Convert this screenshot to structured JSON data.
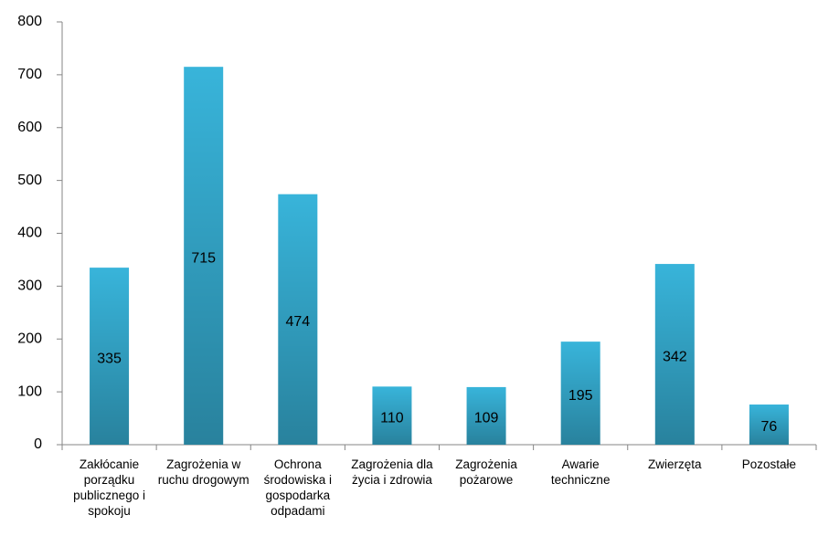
{
  "chart_data": {
    "type": "bar",
    "categories": [
      "Zakłócanie porządku publicznego i spokoju",
      "Zagrożenia w ruchu drogowym",
      "Ochrona środowiska i gospodarka odpadami",
      "Zagrożenia dla życia i zdrowia",
      "Zagrożenia pożarowe",
      "Awarie techniczne",
      "Zwierzęta",
      "Pozostałe"
    ],
    "values": [
      335,
      715,
      474,
      110,
      109,
      195,
      342,
      76
    ],
    "color": "#38b4da",
    "ylim": [
      0,
      800
    ],
    "yticks": [
      0,
      100,
      200,
      300,
      400,
      500,
      600,
      700,
      800
    ],
    "grid": false
  }
}
